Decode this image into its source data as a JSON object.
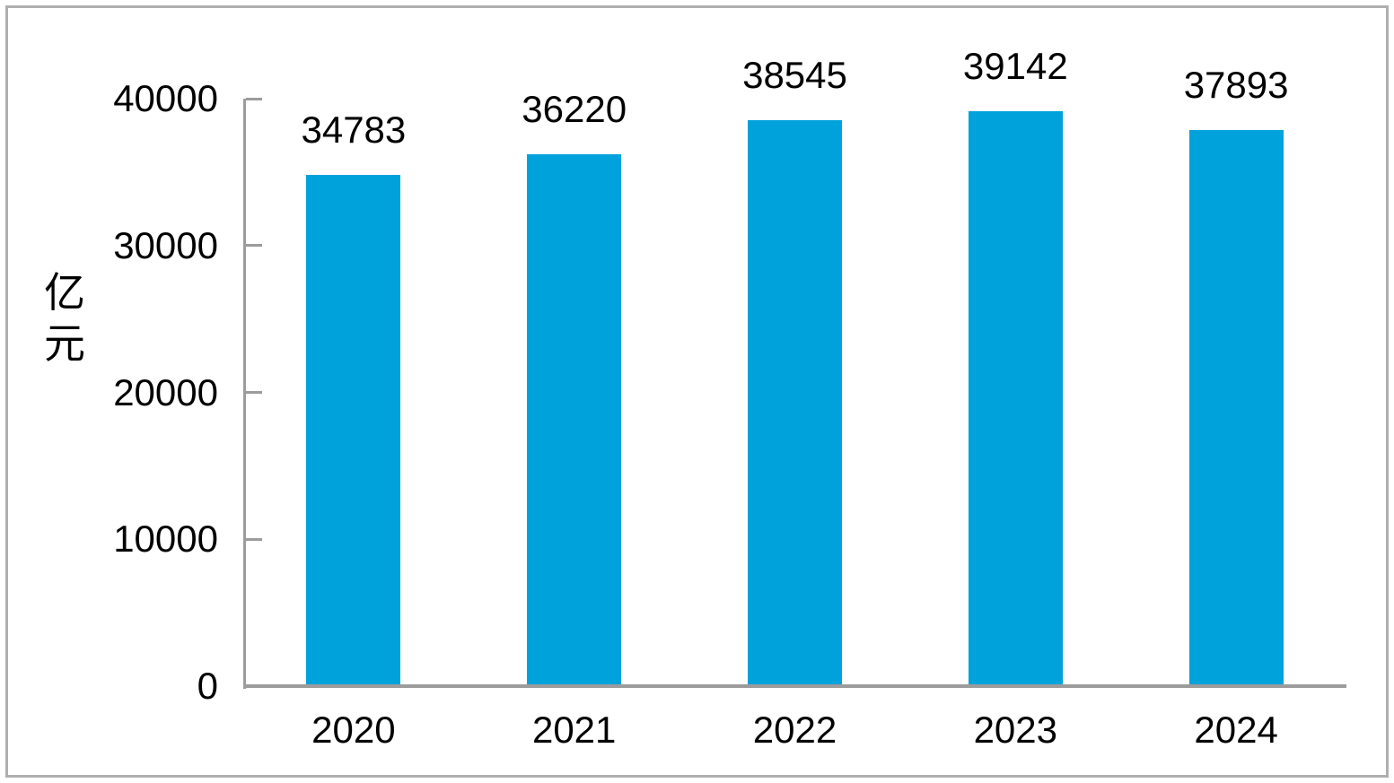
{
  "chart_data": {
    "type": "bar",
    "title": "",
    "xlabel": "",
    "ylabel": "亿元",
    "categories": [
      "2020",
      "2021",
      "2022",
      "2023",
      "2024"
    ],
    "values": [
      34783,
      36220,
      38545,
      39142,
      37893
    ],
    "data_labels": [
      "34783",
      "36220",
      "38545",
      "39142",
      "37893"
    ],
    "y_ticks": [
      0,
      10000,
      20000,
      30000,
      40000
    ],
    "y_tick_labels": [
      "0",
      "10000",
      "20000",
      "30000",
      "40000"
    ],
    "ylim": [
      0,
      40000
    ],
    "grid": "off",
    "legend": "none",
    "bar_color": "#00a2dc",
    "axis_color": "#9c9c9c",
    "text_color": "#000000",
    "frame_border_color": "#afafaf",
    "background_color": "#ffffff"
  }
}
